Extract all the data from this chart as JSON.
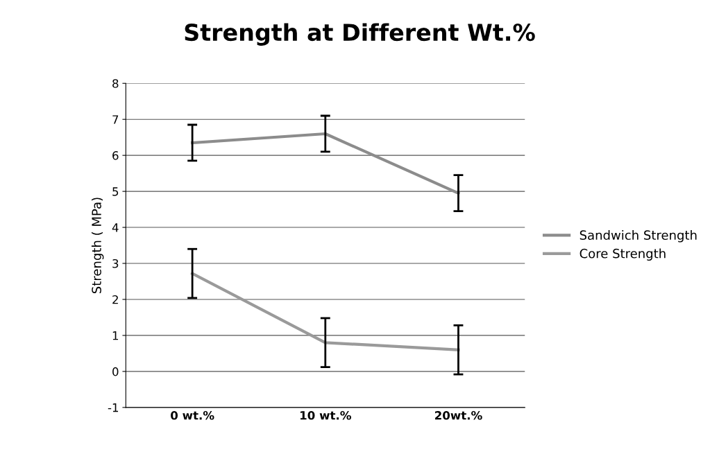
{
  "chart_data": {
    "type": "line",
    "title": "Strength at Different Wt.%",
    "ylabel": "Strength ( MPa)",
    "categories": [
      "0 wt.%",
      "10 wt.%",
      "20wt.%"
    ],
    "series": [
      {
        "name": "Sandwich Strength",
        "color": "#8c8c8c",
        "values": [
          6.35,
          6.6,
          4.95
        ],
        "errors": [
          0.5,
          0.5,
          0.5
        ]
      },
      {
        "name": "Core Strength",
        "color": "#9a9a9a",
        "values": [
          2.72,
          0.8,
          0.6
        ],
        "errors": [
          0.68,
          0.68,
          0.68
        ]
      }
    ],
    "ylim": [
      -1,
      8
    ],
    "yticks": [
      -1,
      0,
      1,
      2,
      3,
      4,
      5,
      6,
      7,
      8
    ],
    "grid": "y",
    "legend": "right",
    "marker": "none",
    "line_style": "solid"
  }
}
